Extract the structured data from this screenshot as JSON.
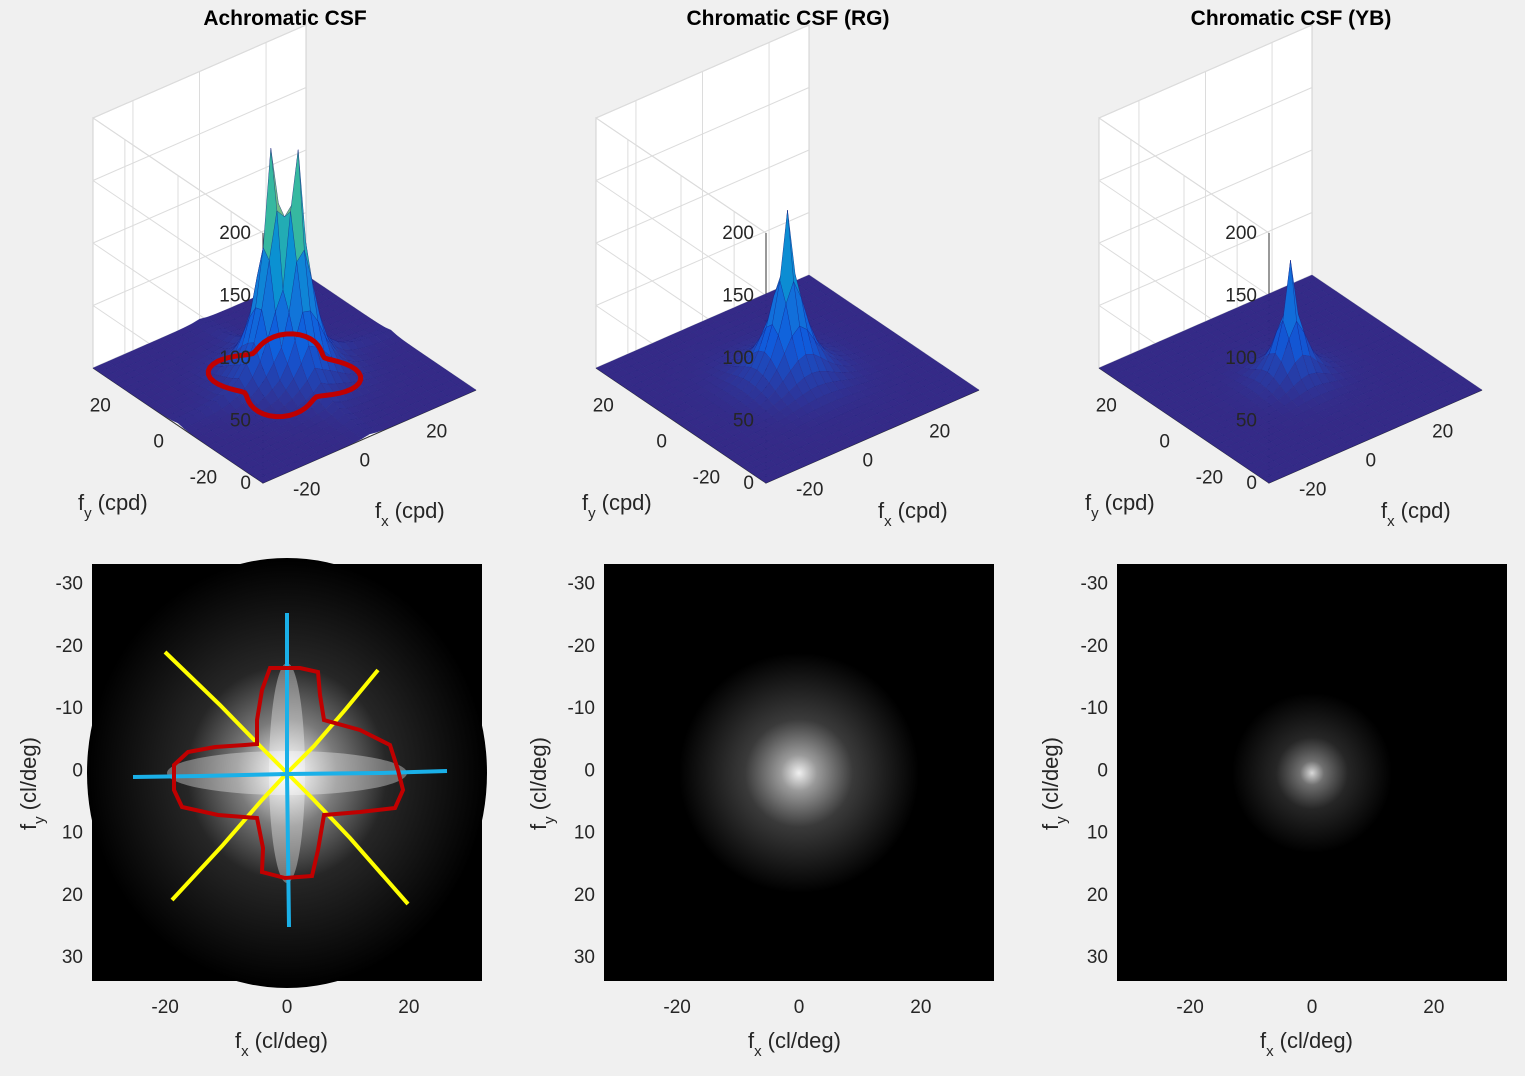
{
  "chart_data": [
    {
      "type": "surface",
      "title": "Achromatic CSF",
      "xlabel": "f",
      "xlabel_sub": "x",
      "xlabel_unit": "(cpd)",
      "ylabel": "f",
      "ylabel_sub": "y",
      "ylabel_unit": "(cpd)",
      "xlim": [
        -32,
        32
      ],
      "ylim": [
        -32,
        32
      ],
      "zlim": [
        0,
        200
      ],
      "x_ticks": [
        -20,
        0,
        20
      ],
      "y_ticks": [
        -20,
        0,
        20
      ],
      "z_ticks": [
        0,
        50,
        100,
        150,
        200
      ],
      "peak_values": [
        190,
        190
      ],
      "peak_offsets": [
        [
          -2,
          2
        ],
        [
          2,
          -2
        ]
      ],
      "grid": true,
      "colormap": "parula",
      "overlay": {
        "name": "contour",
        "color": "#c00000"
      }
    },
    {
      "type": "surface",
      "title": "Chromatic CSF (RG)",
      "xlabel": "f",
      "xlabel_sub": "x",
      "xlabel_unit": "(cpd)",
      "ylabel": "f",
      "ylabel_sub": "y",
      "ylabel_unit": "(cpd)",
      "xlim": [
        -32,
        32
      ],
      "ylim": [
        -32,
        32
      ],
      "zlim": [
        0,
        200
      ],
      "x_ticks": [
        -20,
        0,
        20
      ],
      "y_ticks": [
        -20,
        0,
        20
      ],
      "z_ticks": [
        0,
        50,
        100,
        150,
        200
      ],
      "peak_value": 135,
      "grid": true,
      "colormap": "parula"
    },
    {
      "type": "surface",
      "title": "Chromatic CSF (YB)",
      "xlabel": "f",
      "xlabel_sub": "x",
      "xlabel_unit": "(cpd)",
      "ylabel": "f",
      "ylabel_sub": "y",
      "ylabel_unit": "(cpd)",
      "xlim": [
        -32,
        32
      ],
      "ylim": [
        -32,
        32
      ],
      "zlim": [
        0,
        200
      ],
      "x_ticks": [
        -20,
        0,
        20
      ],
      "y_ticks": [
        -20,
        0,
        20
      ],
      "z_ticks": [
        0,
        50,
        100,
        150,
        200
      ],
      "peak_value": 95,
      "grid": true,
      "colormap": "parula"
    },
    {
      "type": "heatmap",
      "xlabel": "f",
      "xlabel_sub": "x",
      "xlabel_unit": "(cl/deg)",
      "ylabel": "f",
      "ylabel_sub": "y",
      "ylabel_unit": "(cl/deg)",
      "xlim": [
        -32,
        32
      ],
      "ylim": [
        -33,
        34
      ],
      "x_ticks": [
        -20,
        0,
        20
      ],
      "y_ticks": [
        -30,
        -20,
        -10,
        0,
        10,
        20,
        30
      ],
      "colormap": "gray",
      "overlays": [
        {
          "name": "contour",
          "color": "#c00000"
        },
        {
          "name": "horizontal-and-vertical-axes",
          "color": "#1ab0e8"
        },
        {
          "name": "diagonal-axes",
          "color": "#ffff00"
        }
      ]
    },
    {
      "type": "heatmap",
      "xlabel": "f",
      "xlabel_sub": "x",
      "xlabel_unit": "(cl/deg)",
      "ylabel": "f",
      "ylabel_sub": "y",
      "ylabel_unit": "(cl/deg)",
      "xlim": [
        -32,
        32
      ],
      "ylim": [
        -33,
        34
      ],
      "x_ticks": [
        -20,
        0,
        20
      ],
      "y_ticks": [
        -30,
        -20,
        -10,
        0,
        10,
        20,
        30
      ],
      "colormap": "gray"
    },
    {
      "type": "heatmap",
      "xlabel": "f",
      "xlabel_sub": "x",
      "xlabel_unit": "(cl/deg)",
      "ylabel": "f",
      "ylabel_sub": "y",
      "ylabel_unit": "(cl/deg)",
      "xlim": [
        -32,
        32
      ],
      "ylim": [
        -33,
        34
      ],
      "x_ticks": [
        -20,
        0,
        20
      ],
      "y_ticks": [
        -30,
        -20,
        -10,
        0,
        10,
        20,
        30
      ],
      "colormap": "gray"
    }
  ]
}
